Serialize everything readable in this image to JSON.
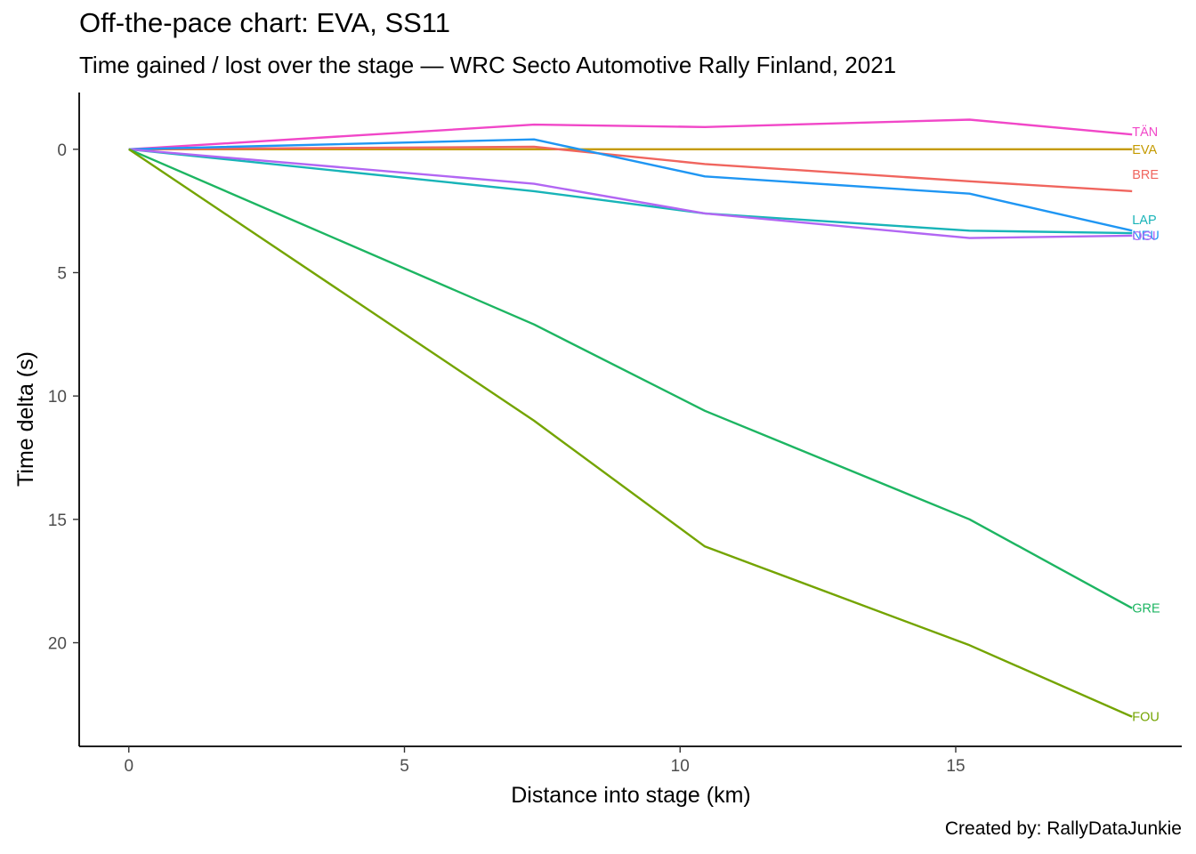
{
  "chart_data": {
    "type": "line",
    "title": "Off-the-pace chart: EVA, SS11",
    "subtitle": "Time gained / lost over the stage — WRC Secto Automotive Rally Finland, 2021",
    "caption": "Created by: RallyDataJunkie",
    "xlabel": "Distance into stage (km)",
    "ylabel": "Time delta (s)",
    "xlim": [
      -0.9,
      19.1
    ],
    "ylim": [
      -2.3,
      24.2
    ],
    "y_reversed": true,
    "xticks": [
      0,
      5,
      10,
      15
    ],
    "yticks": [
      0,
      5,
      10,
      15,
      20
    ],
    "grid": false,
    "legend": "direct labels at line ends",
    "x": [
      0,
      7.35,
      10.45,
      15.25,
      18.2
    ],
    "series": [
      {
        "name": "TÄN",
        "color": "#F147C8",
        "values": [
          0,
          -1.0,
          -0.9,
          -1.2,
          -0.6
        ]
      },
      {
        "name": "EVA",
        "color": "#C49A00",
        "values": [
          0,
          0,
          0,
          0,
          0
        ]
      },
      {
        "name": "BRE",
        "color": "#F0655E",
        "values": [
          0,
          -0.1,
          0.6,
          1.3,
          1.7
        ]
      },
      {
        "name": "NEU",
        "color": "#1F96F3",
        "values": [
          0,
          -0.4,
          1.1,
          1.8,
          3.3
        ]
      },
      {
        "name": "LAP",
        "color": "#18B4B8",
        "values": [
          0,
          1.7,
          2.6,
          3.3,
          3.4
        ]
      },
      {
        "name": "OGI",
        "color": "#B266F3",
        "values": [
          0,
          1.4,
          2.6,
          3.6,
          3.5
        ]
      },
      {
        "name": "GRE",
        "color": "#1DB562",
        "values": [
          0,
          7.1,
          10.6,
          15.0,
          18.6
        ]
      },
      {
        "name": "FOU",
        "color": "#74A400",
        "values": [
          0,
          11.0,
          16.1,
          20.1,
          23.0
        ]
      }
    ]
  }
}
